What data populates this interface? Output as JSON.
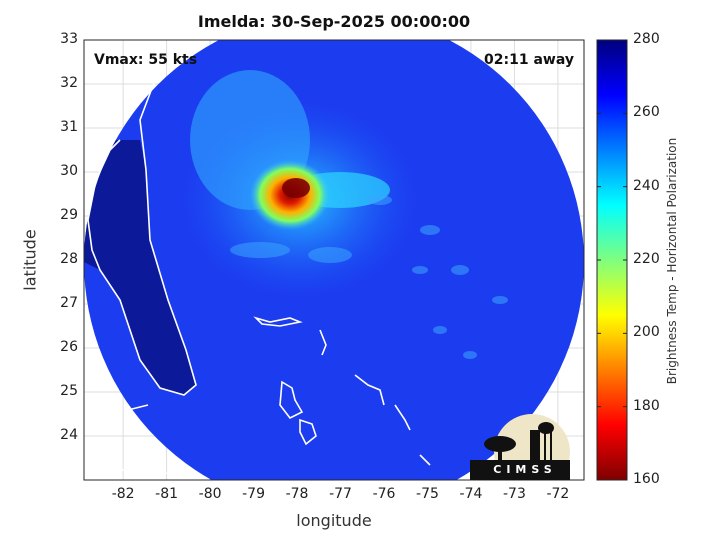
{
  "title": "Imelda: 30-Sep-2025 00:00:00",
  "vmax_label": "Vmax: 55 kts",
  "time_label": "02:11 away",
  "map": {
    "xlabel": "longitude",
    "ylabel": "latitude",
    "xlim": [
      -82.9,
      -71.4
    ],
    "ylim": [
      23,
      33
    ],
    "x_ticks": [
      "-82",
      "-81",
      "-80",
      "-79",
      "-78",
      "-77",
      "-76",
      "-75",
      "-74",
      "-73",
      "-72"
    ],
    "y_ticks": [
      "33",
      "32",
      "31",
      "30",
      "29",
      "28",
      "27",
      "26",
      "25",
      "24"
    ],
    "storm_center": {
      "lon": -78.0,
      "lat": 29.7
    },
    "background_field_K": 262,
    "land_K": 272
  },
  "colorbar": {
    "label": "Brightness Temp - Horizontal Polarization",
    "range": [
      160,
      280
    ],
    "ticks": [
      "280",
      "260",
      "240",
      "220",
      "200",
      "180",
      "160"
    ],
    "colormap": "jet"
  },
  "logo": {
    "text": "CIMSS"
  },
  "colors": {
    "axis": "#262626",
    "grid": "#dddddd",
    "coast": "#ffffff"
  }
}
